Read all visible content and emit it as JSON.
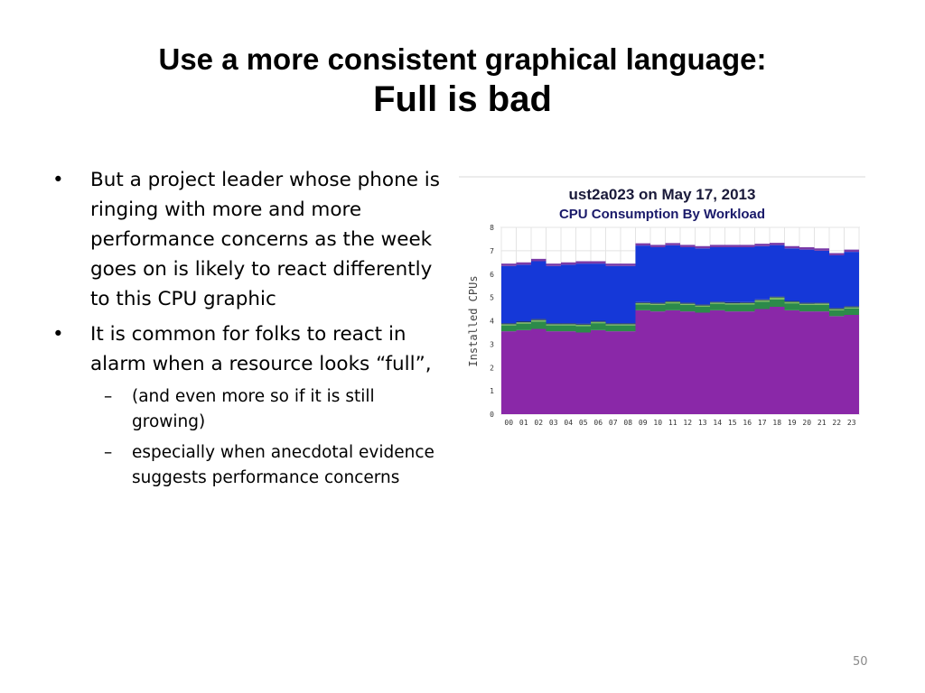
{
  "slide": {
    "title_line1": "Use a more consistent graphical language:",
    "title_line2": "Full is bad",
    "bullets": [
      "But a project leader whose phone is ringing with more and more performance concerns as the week goes on is likely to react differently to this CPU graphic",
      "It is common for folks to react in alarm when a resource looks “full”,"
    ],
    "subbullets": [
      "(and even more so if it is still growing)",
      "especially when anecdotal evidence suggests performance concerns"
    ],
    "page_number": "50"
  },
  "chart_data": {
    "type": "area",
    "stacked": true,
    "title": "ust2a023 on May 17, 2013",
    "subtitle": "CPU Consumption By Workload",
    "xlabel": "",
    "ylabel": "Installed CPUs",
    "ylim": [
      0,
      8
    ],
    "yticks": [
      "0",
      "1",
      "2",
      "3",
      "4",
      "5",
      "6",
      "7",
      "8"
    ],
    "categories": [
      "00",
      "01",
      "02",
      "03",
      "04",
      "05",
      "06",
      "07",
      "08",
      "09",
      "10",
      "11",
      "12",
      "13",
      "14",
      "15",
      "16",
      "17",
      "18",
      "19",
      "20",
      "21",
      "22",
      "23"
    ],
    "grid": true,
    "colors": [
      "#8a28a8",
      "#2c8a4a",
      "#7ab85a",
      "#1f3a6a",
      "#1538d8",
      "#7a3aa8"
    ],
    "series": [
      {
        "values": [
          3.55,
          3.6,
          3.65,
          3.55,
          3.55,
          3.5,
          3.6,
          3.55,
          3.55,
          4.45,
          4.4,
          4.45,
          4.4,
          4.35,
          4.45,
          4.4,
          4.4,
          4.5,
          4.6,
          4.45,
          4.4,
          4.4,
          4.2,
          4.25
        ]
      },
      {
        "values": [
          0.25,
          0.28,
          0.32,
          0.25,
          0.25,
          0.28,
          0.3,
          0.25,
          0.25,
          0.25,
          0.28,
          0.3,
          0.28,
          0.25,
          0.28,
          0.3,
          0.3,
          0.32,
          0.32,
          0.3,
          0.28,
          0.28,
          0.25,
          0.28
        ]
      },
      {
        "values": [
          0.05,
          0.05,
          0.06,
          0.05,
          0.05,
          0.05,
          0.05,
          0.05,
          0.05,
          0.06,
          0.05,
          0.06,
          0.05,
          0.05,
          0.05,
          0.05,
          0.06,
          0.06,
          0.08,
          0.06,
          0.05,
          0.06,
          0.05,
          0.05
        ]
      },
      {
        "values": [
          0.05,
          0.05,
          0.05,
          0.05,
          0.05,
          0.05,
          0.05,
          0.05,
          0.05,
          0.04,
          0.05,
          0.04,
          0.05,
          0.05,
          0.04,
          0.05,
          0.04,
          0.04,
          0.04,
          0.04,
          0.05,
          0.04,
          0.05,
          0.05
        ]
      },
      {
        "values": [
          2.45,
          2.42,
          2.47,
          2.45,
          2.5,
          2.57,
          2.45,
          2.45,
          2.45,
          2.42,
          2.37,
          2.38,
          2.37,
          2.4,
          2.33,
          2.35,
          2.35,
          2.28,
          2.2,
          2.25,
          2.27,
          2.22,
          2.25,
          2.32
        ]
      },
      {
        "values": [
          0.1,
          0.1,
          0.1,
          0.1,
          0.1,
          0.1,
          0.1,
          0.1,
          0.1,
          0.1,
          0.1,
          0.1,
          0.1,
          0.1,
          0.1,
          0.1,
          0.1,
          0.1,
          0.1,
          0.1,
          0.1,
          0.1,
          0.1,
          0.1
        ]
      }
    ]
  }
}
